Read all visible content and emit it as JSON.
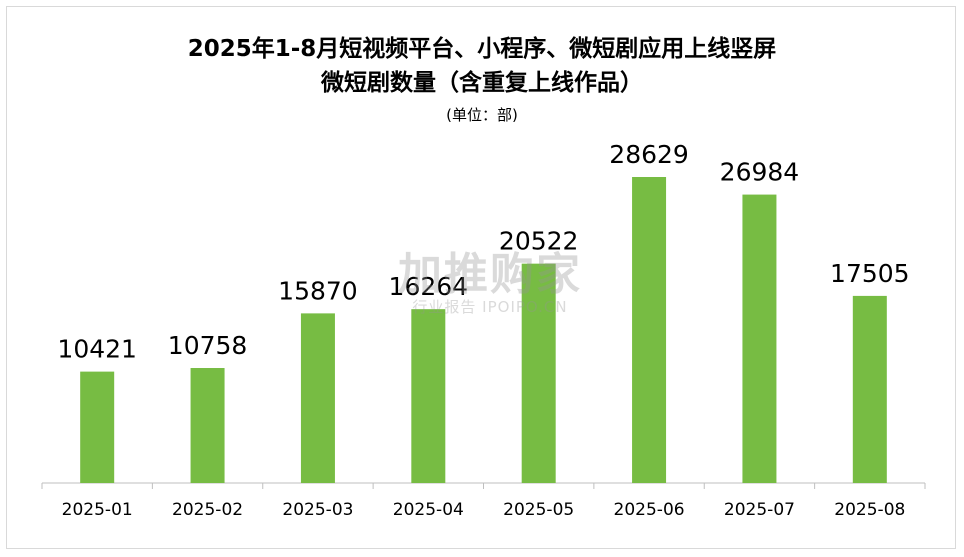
{
  "chart_data": {
    "type": "bar",
    "title_line1": "2025年1-8月短视频平台、小程序、微短剧应用上线竖屏",
    "title_line2": "微短剧数量（含重复上线作品）",
    "unit": "(单位：部)",
    "categories": [
      "2025-01",
      "2025-02",
      "2025-03",
      "2025-04",
      "2025-05",
      "2025-06",
      "2025-07",
      "2025-08"
    ],
    "values": [
      10421,
      10758,
      15870,
      16264,
      20522,
      28629,
      26984,
      17505
    ],
    "ylim": [
      0,
      32000
    ],
    "grid": false,
    "legend": "none",
    "bar_color": "#77bc43"
  },
  "watermark": {
    "main": "加推购家",
    "sub": "行业报告 IPOIPO.CN"
  }
}
